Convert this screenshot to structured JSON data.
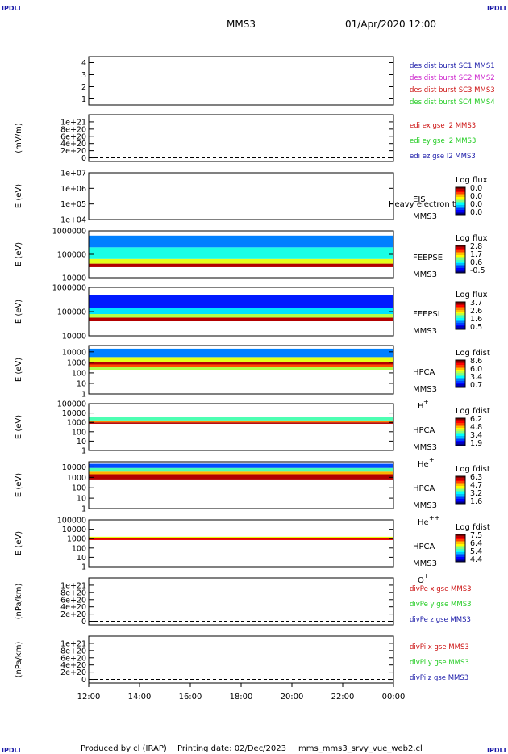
{
  "header": {
    "corner_tl": "IPDLI",
    "corner_tr": "IPDLI",
    "corner_bl": "IPDLI",
    "corner_br": "IPDLI",
    "spacecraft": "MMS3",
    "datetime": "01/Apr/2020 12:00"
  },
  "footer": {
    "produced_by": "Produced by cl (IRAP)",
    "printing_date": "Printing date: 02/Dec/2023",
    "script": "mms_mms3_srvy_vue_web2.cl"
  },
  "colors": {
    "dark_blue": "#1a1aa8",
    "magenta": "#cc22cc",
    "red": "#cc1111",
    "green": "#22cc22"
  },
  "chart_data": [
    {
      "type": "line",
      "name": "burst",
      "ylim": [
        0.5,
        4.5
      ],
      "yticks": [
        "4",
        "3",
        "2",
        "1"
      ],
      "ytick_values": [
        4,
        3,
        2,
        1
      ],
      "ylabel": "",
      "legend": [
        {
          "text": "des dist burst SC1 MMS1",
          "color": "#1a1aa8"
        },
        {
          "text": "des dist burst SC2 MMS2",
          "color": "#cc22cc"
        },
        {
          "text": "des dist burst SC3 MMS3",
          "color": "#cc1111"
        },
        {
          "text": "des dist burst SC4 MMS4",
          "color": "#22cc22"
        }
      ]
    },
    {
      "type": "line",
      "name": "edi",
      "ylim": [
        -1e+20,
        1.2e+21
      ],
      "yticks": [
        "1e+21",
        "8e+20",
        "6e+20",
        "4e+20",
        "2e+20",
        "0"
      ],
      "ytick_values": [
        1e+21,
        8e+20,
        6e+20,
        4e+20,
        2e+20,
        0
      ],
      "ylabel": "(mV/m)",
      "zero_line": true,
      "legend": [
        {
          "text": "edi ex gse l2 MMS3",
          "color": "#cc1111"
        },
        {
          "text": "edi ey gse l2 MMS3",
          "color": "#22cc22"
        },
        {
          "text": "edi ez gse l2 MMS3",
          "color": "#1a1aa8"
        }
      ]
    },
    {
      "type": "heatmap",
      "name": "eis",
      "ylabel": "E (eV)",
      "yticks": [
        "1e+07",
        "1e+06",
        "1e+05",
        "1e+04"
      ],
      "log_ylim": [
        4,
        7
      ],
      "ytick_exponents": [
        7,
        6,
        5,
        4
      ],
      "instrument": "EIS",
      "sc": "MMS3",
      "overlay_text": "Heavy electron to",
      "colorbar": {
        "title": "Log flux",
        "labels": [
          "0.0",
          "0.0",
          "0.0",
          "0.0"
        ]
      },
      "spectrum": []
    },
    {
      "type": "heatmap",
      "name": "feepse",
      "ylabel": "E (eV)",
      "yticks": [
        "1000000",
        "100000",
        "10000"
      ],
      "log_ylim": [
        4,
        6
      ],
      "ytick_exponents": [
        6,
        5,
        4
      ],
      "instrument": "FEEPSE",
      "sc": "MMS3",
      "colorbar": {
        "title": "Log flux",
        "labels": [
          "2.8",
          "1.7",
          "0.6",
          "-0.5"
        ]
      },
      "spectrum": [
        {
          "log_e_min": 4.45,
          "log_e_max": 4.6,
          "level": 0.95
        },
        {
          "log_e_min": 4.6,
          "log_e_max": 4.8,
          "level": 0.6
        },
        {
          "log_e_min": 4.8,
          "log_e_max": 5.3,
          "level": 0.4
        },
        {
          "log_e_min": 5.3,
          "log_e_max": 5.8,
          "level": 0.25
        }
      ]
    },
    {
      "type": "heatmap",
      "name": "feepsi",
      "ylabel": "E (eV)",
      "yticks": [
        "1000000",
        "100000",
        "10000"
      ],
      "log_ylim": [
        4,
        6
      ],
      "ytick_exponents": [
        6,
        5,
        4
      ],
      "instrument": "FEEPSI",
      "sc": "MMS3",
      "colorbar": {
        "title": "Log flux",
        "labels": [
          "3.7",
          "2.6",
          "1.6",
          "0.5"
        ]
      },
      "spectrum": [
        {
          "log_e_min": 4.6,
          "log_e_max": 4.75,
          "level": 0.95
        },
        {
          "log_e_min": 4.75,
          "log_e_max": 4.9,
          "level": 0.55
        },
        {
          "log_e_min": 4.9,
          "log_e_max": 5.15,
          "level": 0.35
        },
        {
          "log_e_min": 5.15,
          "log_e_max": 5.7,
          "level": 0.15
        }
      ]
    },
    {
      "type": "heatmap",
      "name": "hpca_h",
      "ylabel": "E (eV)",
      "yticks": [
        "10000",
        "1000",
        "100",
        "10",
        "1"
      ],
      "log_ylim": [
        0,
        4.6
      ],
      "ytick_exponents": [
        4,
        3,
        2,
        1,
        0
      ],
      "instrument": "HPCA",
      "sc": "MMS3",
      "species": "H",
      "species_sup": "+",
      "colorbar": {
        "title": "Log fdist",
        "labels": [
          "8.6",
          "6.0",
          "3.4",
          "0.7"
        ]
      },
      "spectrum": [
        {
          "log_e_min": 2.3,
          "log_e_max": 2.6,
          "level": 0.55
        },
        {
          "log_e_min": 2.6,
          "log_e_max": 2.8,
          "level": 0.8
        },
        {
          "log_e_min": 2.8,
          "log_e_max": 3.05,
          "level": 0.95
        },
        {
          "log_e_min": 3.05,
          "log_e_max": 3.5,
          "level": 0.6
        },
        {
          "log_e_min": 3.5,
          "log_e_max": 4.3,
          "level": 0.25
        }
      ]
    },
    {
      "type": "heatmap",
      "name": "hpca_he",
      "ylabel": "E (eV)",
      "yticks": [
        "100000",
        "10000",
        "1000",
        "100",
        "10",
        "1"
      ],
      "log_ylim": [
        0,
        5
      ],
      "ytick_exponents": [
        5,
        4,
        3,
        2,
        1,
        0
      ],
      "instrument": "HPCA",
      "sc": "MMS3",
      "species": "He",
      "species_sup": "+",
      "colorbar": {
        "title": "Log fdist",
        "labels": [
          "6.2",
          "4.8",
          "3.4",
          "1.9"
        ]
      },
      "spectrum": [
        {
          "log_e_min": 2.85,
          "log_e_max": 3.0,
          "level": 0.95
        },
        {
          "log_e_min": 3.0,
          "log_e_max": 3.2,
          "level": 0.75
        },
        {
          "log_e_min": 3.2,
          "log_e_max": 3.6,
          "level": 0.45
        }
      ]
    },
    {
      "type": "heatmap",
      "name": "hpca_he2",
      "ylabel": "E (eV)",
      "yticks": [
        "10000",
        "1000",
        "100",
        "10",
        "1"
      ],
      "log_ylim": [
        0,
        4.5
      ],
      "ytick_exponents": [
        4,
        3,
        2,
        1,
        0
      ],
      "instrument": "HPCA",
      "sc": "MMS3",
      "species": "He",
      "species_sup": "++",
      "colorbar": {
        "title": "Log fdist",
        "labels": [
          "6.3",
          "4.7",
          "3.2",
          "1.6"
        ]
      },
      "spectrum": [
        {
          "log_e_min": 2.8,
          "log_e_max": 3.3,
          "level": 0.95
        },
        {
          "log_e_min": 3.3,
          "log_e_max": 3.55,
          "level": 0.7
        },
        {
          "log_e_min": 3.55,
          "log_e_max": 3.9,
          "level": 0.45
        },
        {
          "log_e_min": 3.9,
          "log_e_max": 4.3,
          "level": 0.2
        }
      ]
    },
    {
      "type": "heatmap",
      "name": "hpca_o",
      "ylabel": "E (eV)",
      "yticks": [
        "100000",
        "10000",
        "1000",
        "100",
        "10",
        "1"
      ],
      "log_ylim": [
        0,
        5
      ],
      "ytick_exponents": [
        5,
        4,
        3,
        2,
        1,
        0
      ],
      "instrument": "HPCA",
      "sc": "MMS3",
      "species": "O",
      "species_sup": "+",
      "colorbar": {
        "title": "Log fdist",
        "labels": [
          "7.5",
          "6.4",
          "5.4",
          "4.4"
        ]
      },
      "spectrum": [
        {
          "log_e_min": 2.85,
          "log_e_max": 3.05,
          "level": 0.9
        },
        {
          "log_e_min": 3.05,
          "log_e_max": 3.2,
          "level": 0.6
        }
      ]
    },
    {
      "type": "line",
      "name": "divpe",
      "ylabel": "(nPa/km)",
      "ylim": [
        -1e+20,
        1.2e+21
      ],
      "yticks": [
        "1e+21",
        "8e+20",
        "6e+20",
        "4e+20",
        "2e+20",
        "0"
      ],
      "ytick_values": [
        1e+21,
        8e+20,
        6e+20,
        4e+20,
        2e+20,
        0
      ],
      "zero_line": true,
      "legend": [
        {
          "text": "divPe x gse MMS3",
          "color": "#cc1111"
        },
        {
          "text": "divPe y gse MMS3",
          "color": "#22cc22"
        },
        {
          "text": "divPe z gse MMS3",
          "color": "#1a1aa8"
        }
      ]
    },
    {
      "type": "line",
      "name": "divpi",
      "ylabel": "(nPa/km)",
      "ylim": [
        -1e+20,
        1.2e+21
      ],
      "yticks": [
        "1e+21",
        "8e+20",
        "6e+20",
        "4e+20",
        "2e+20",
        "0"
      ],
      "ytick_values": [
        1e+21,
        8e+20,
        6e+20,
        4e+20,
        2e+20,
        0
      ],
      "zero_line": true,
      "legend": [
        {
          "text": "divPi x gse MMS3",
          "color": "#cc1111"
        },
        {
          "text": "divPi y gse MMS3",
          "color": "#22cc22"
        },
        {
          "text": "divPi z gse MMS3",
          "color": "#1a1aa8"
        }
      ]
    }
  ],
  "time_axis": {
    "labels": [
      "12:00",
      "14:00",
      "16:00",
      "18:00",
      "20:00",
      "22:00",
      "00:00"
    ],
    "range_hours": [
      12,
      24
    ]
  }
}
